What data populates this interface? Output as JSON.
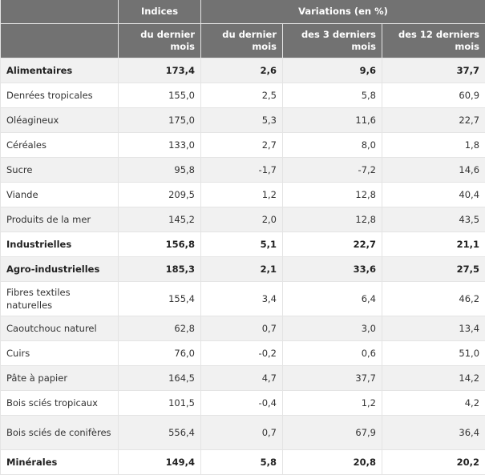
{
  "header": {
    "indices": "Indices",
    "variations": "Variations (en %)",
    "sub": [
      "du dernier mois",
      "du dernier mois",
      "des 3 derniers mois",
      "des 12 derniers mois"
    ]
  },
  "rows": [
    {
      "label": "Alimentaires",
      "values": [
        "173,4",
        "2,6",
        "9,6",
        "37,7"
      ],
      "bold": true
    },
    {
      "label": "Denrées tropicales",
      "values": [
        "155,0",
        "2,5",
        "5,8",
        "60,9"
      ]
    },
    {
      "label": "Oléagineux",
      "values": [
        "175,0",
        "5,3",
        "11,6",
        "22,7"
      ]
    },
    {
      "label": "Céréales",
      "values": [
        "133,0",
        "2,7",
        "8,0",
        "1,8"
      ]
    },
    {
      "label": "Sucre",
      "values": [
        "95,8",
        "-1,7",
        "-7,2",
        "14,6"
      ]
    },
    {
      "label": "Viande",
      "values": [
        "209,5",
        "1,2",
        "12,8",
        "40,4"
      ]
    },
    {
      "label": "Produits de la mer",
      "values": [
        "145,2",
        "2,0",
        "12,8",
        "43,5"
      ]
    },
    {
      "label": "Industrielles",
      "values": [
        "156,8",
        "5,1",
        "22,7",
        "21,1"
      ],
      "bold": true
    },
    {
      "label": "Agro-industrielles",
      "values": [
        "185,3",
        "2,1",
        "33,6",
        "27,5"
      ],
      "bold": true
    },
    {
      "label": "Fibres textiles naturelles",
      "values": [
        "155,4",
        "3,4",
        "6,4",
        "46,2"
      ]
    },
    {
      "label": "Caoutchouc naturel",
      "values": [
        "62,8",
        "0,7",
        "3,0",
        "13,4"
      ]
    },
    {
      "label": "Cuirs",
      "values": [
        "76,0",
        "-0,2",
        "0,6",
        "51,0"
      ]
    },
    {
      "label": "Pâte à papier",
      "values": [
        "164,5",
        "4,7",
        "37,7",
        "14,2"
      ]
    },
    {
      "label": "Bois sciés tropicaux",
      "values": [
        "101,5",
        "-0,4",
        "1,2",
        "4,2"
      ]
    },
    {
      "label": "Bois sciés de conifères",
      "values": [
        "556,4",
        "0,7",
        "67,9",
        "36,4"
      ]
    },
    {
      "label": "Minérales",
      "values": [
        "149,4",
        "5,8",
        "20,8",
        "20,2"
      ],
      "bold": true
    }
  ]
}
